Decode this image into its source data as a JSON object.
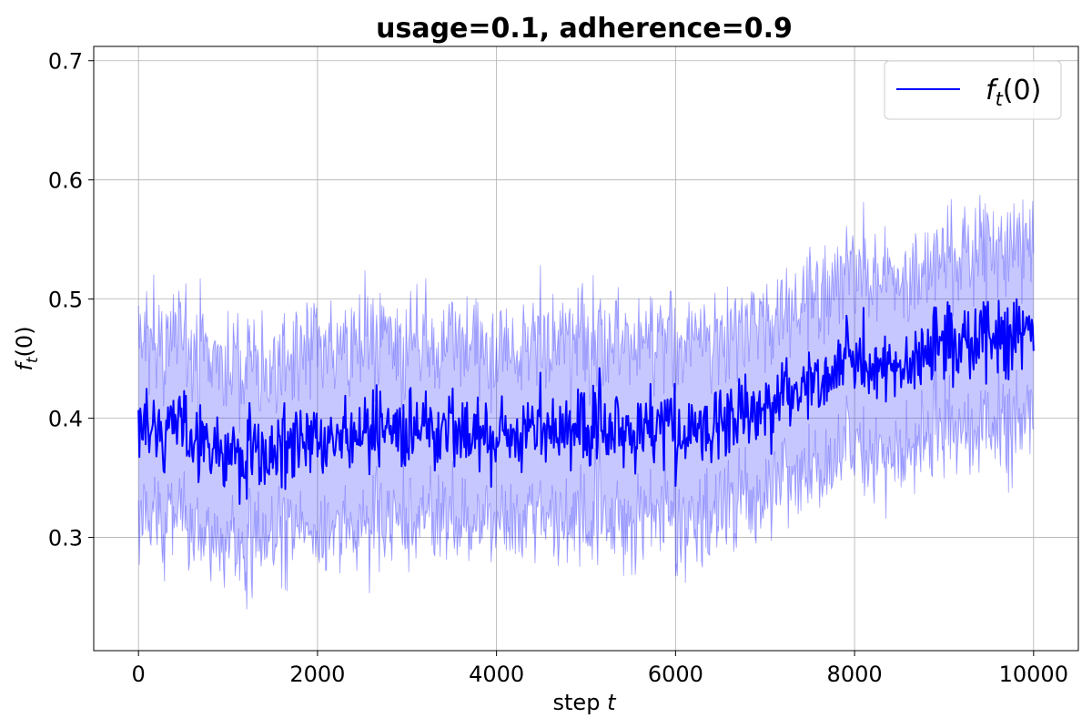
{
  "chart_data": {
    "type": "line",
    "title": "usage=0.1, adherence=0.9",
    "xlabel": "step t",
    "ylabel": "f_t(0)",
    "xlim": [
      -500,
      10500
    ],
    "ylim": [
      0.205,
      0.712
    ],
    "x_ticks": [
      0,
      2000,
      4000,
      6000,
      8000,
      10000
    ],
    "x_tick_labels": [
      "0",
      "2000",
      "4000",
      "6000",
      "8000",
      "10000"
    ],
    "y_ticks": [
      0.3,
      0.4,
      0.5,
      0.6,
      0.7
    ],
    "y_tick_labels": [
      "0.3",
      "0.4",
      "0.5",
      "0.6",
      "0.7"
    ],
    "grid": true,
    "legend_position": "top-right",
    "x_range": [
      0,
      10000
    ],
    "series": [
      {
        "name": "f_t(0)",
        "color": "#0000ff",
        "band_color": "#0000ff",
        "band_opacity": 0.22,
        "n_points": 1001,
        "points": [
          [
            0,
            0.39
          ],
          [
            500,
            0.39
          ],
          [
            1000,
            0.37
          ],
          [
            1500,
            0.37
          ],
          [
            2000,
            0.38
          ],
          [
            2500,
            0.39
          ],
          [
            3000,
            0.39
          ],
          [
            3500,
            0.39
          ],
          [
            4000,
            0.385
          ],
          [
            4500,
            0.39
          ],
          [
            5000,
            0.395
          ],
          [
            5500,
            0.39
          ],
          [
            6000,
            0.385
          ],
          [
            6500,
            0.395
          ],
          [
            7000,
            0.41
          ],
          [
            7500,
            0.425
          ],
          [
            8000,
            0.455
          ],
          [
            8500,
            0.44
          ],
          [
            9000,
            0.465
          ],
          [
            9500,
            0.465
          ],
          [
            10000,
            0.47
          ]
        ],
        "band_half_width": 0.075,
        "noise_amplitude": 0.06
      }
    ],
    "legend_entries": [
      {
        "label_main": "f",
        "label_sub": "t",
        "label_tail": "(0)",
        "color": "#0000ff"
      }
    ]
  }
}
